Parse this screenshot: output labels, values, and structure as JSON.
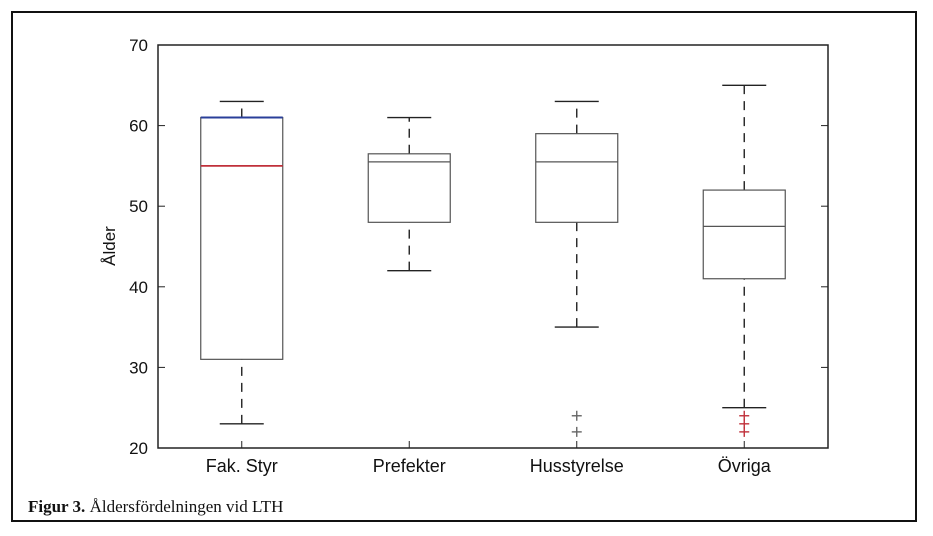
{
  "caption": {
    "label": "Figur 3.",
    "text": "Åldersfördelningen vid LTH"
  },
  "chart_data": {
    "type": "boxplot",
    "ylabel": "Ålder",
    "xlabel": "",
    "ylim": [
      20,
      70
    ],
    "yticks": [
      20,
      30,
      40,
      50,
      60,
      70
    ],
    "grid": false,
    "categories": [
      "Fak. Styr",
      "Prefekter",
      "Husstyrelse",
      "Övriga"
    ],
    "boxes": [
      {
        "category": "Fak. Styr",
        "whisker_low": 23,
        "q1": 31,
        "median": 55,
        "q3": 61,
        "whisker_high": 63,
        "outliers": []
      },
      {
        "category": "Prefekter",
        "whisker_low": 42,
        "q1": 48,
        "median": 55.5,
        "q3": 56.5,
        "whisker_high": 61,
        "outliers": []
      },
      {
        "category": "Husstyrelse",
        "whisker_low": 35,
        "q1": 48,
        "median": 55.5,
        "q3": 59,
        "whisker_high": 63,
        "outliers": [
          22,
          24
        ]
      },
      {
        "category": "Övriga",
        "whisker_low": 25,
        "q1": 41,
        "median": 47.5,
        "q3": 52,
        "whisker_high": 65,
        "outliers": [
          22,
          23,
          24
        ]
      }
    ],
    "colors": {
      "box": "#555555",
      "median_highlight": "#c0303a",
      "q3_highlight": "#2a3f9a",
      "outlier": "#c0303a"
    }
  }
}
